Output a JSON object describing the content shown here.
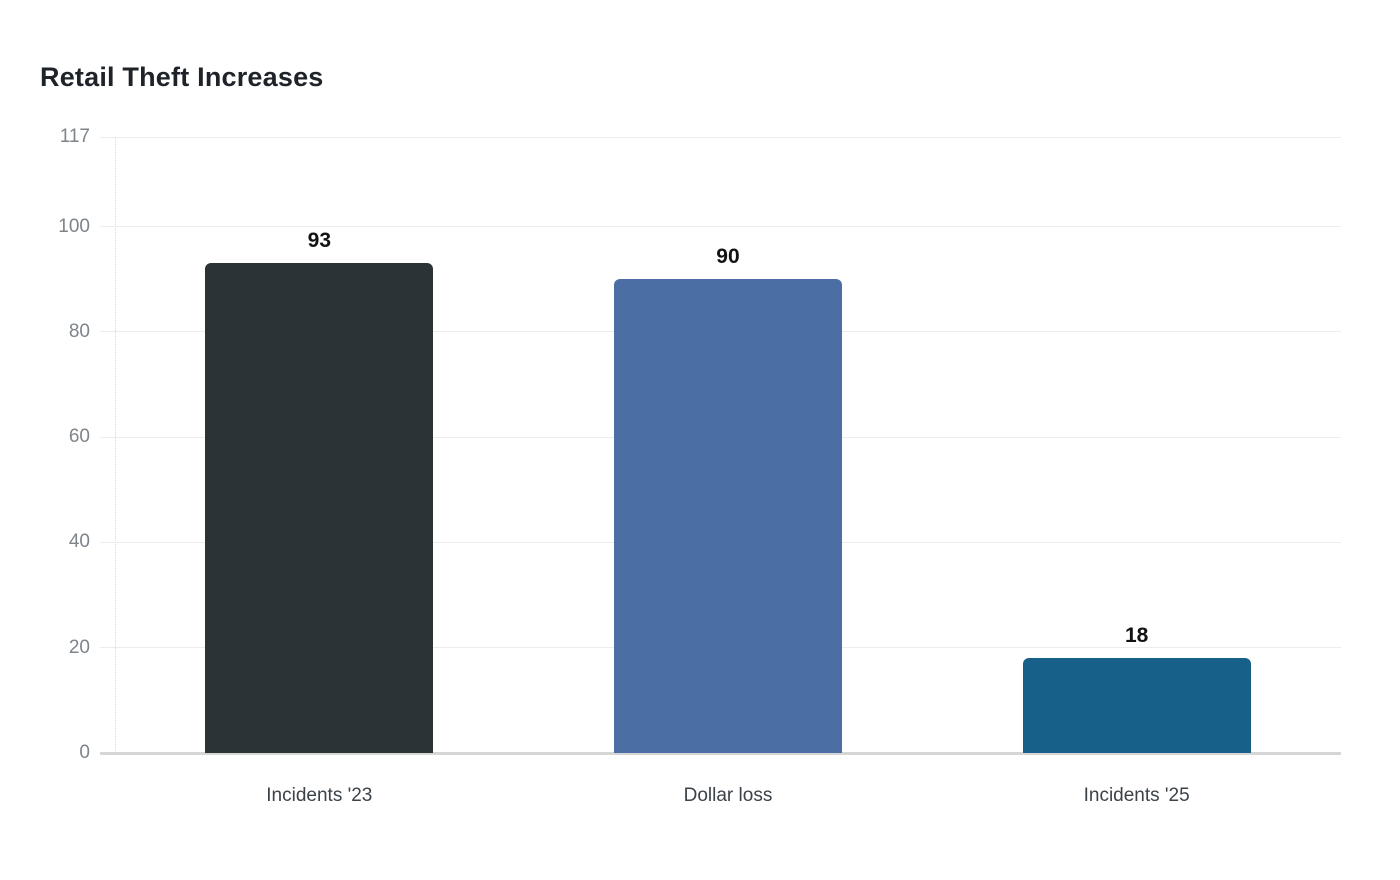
{
  "page": {
    "background_color": "#ffffff"
  },
  "chart_data": {
    "type": "bar",
    "title": "Retail Theft Increases",
    "categories": [
      "Incidents '23",
      "Dollar loss",
      "Incidents '25"
    ],
    "values": [
      93,
      90,
      18
    ],
    "value_labels": [
      "93",
      "90",
      "18"
    ],
    "bar_colors": [
      "#2c3336",
      "#4b6ea5",
      "#166089"
    ],
    "ylim": [
      0,
      117
    ],
    "yticks": [
      0,
      20,
      40,
      60,
      80,
      100,
      117
    ],
    "xlabel": "",
    "ylabel": "",
    "grid": "horizontal",
    "legend_position": "none",
    "style": {
      "title_color": "#1e2329",
      "tick_label_color": "#7d848b",
      "category_label_color": "#3b4248",
      "value_label_color": "#101214",
      "gridline_color": "#ececec",
      "baseline_color": "#d6d6d6",
      "axis_line_color": "#d9d9d9"
    }
  }
}
